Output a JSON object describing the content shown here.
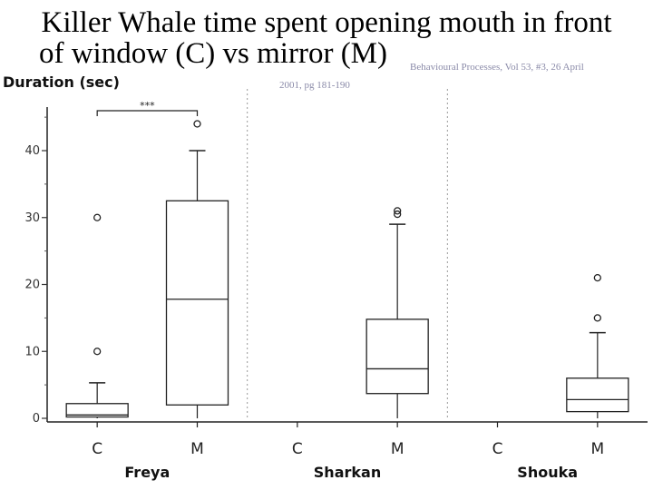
{
  "slide": {
    "title_line1": "Killer Whale time spent opening mouth in front",
    "title_line2": "of window (C) vs mirror (M)",
    "citation_line1": "Behavioural Processes, Vol 53, #3, 26 April",
    "citation_line2": "2001, pg 181-190"
  },
  "chart_data": {
    "type": "box",
    "title": "",
    "ylabel": "Duration (sec)",
    "ylim": [
      0,
      45
    ],
    "yticks": [
      0,
      10,
      20,
      30,
      40
    ],
    "significance": {
      "label": "***",
      "group": "Freya",
      "between": [
        "C",
        "M"
      ]
    },
    "groups": [
      {
        "name": "Freya",
        "boxes": [
          {
            "category": "C",
            "whisker_low": 0,
            "q1": 0.2,
            "median": 0.5,
            "q3": 2.2,
            "whisker_high": 5.3,
            "outliers": [
              10,
              30
            ]
          },
          {
            "category": "M",
            "whisker_low": 0,
            "q1": 2,
            "median": 17.8,
            "q3": 32.5,
            "whisker_high": 40,
            "outliers": [
              44
            ]
          }
        ]
      },
      {
        "name": "Sharkan",
        "boxes": [
          {
            "category": "C",
            "whisker_low": null,
            "q1": null,
            "median": null,
            "q3": null,
            "whisker_high": null,
            "outliers": []
          },
          {
            "category": "M",
            "whisker_low": 0,
            "q1": 3.7,
            "median": 7.4,
            "q3": 14.8,
            "whisker_high": 29,
            "outliers": [
              30.5,
              31
            ]
          }
        ]
      },
      {
        "name": "Shouka",
        "boxes": [
          {
            "category": "C",
            "whisker_low": null,
            "q1": null,
            "median": null,
            "q3": null,
            "whisker_high": null,
            "outliers": []
          },
          {
            "category": "M",
            "whisker_low": 0,
            "q1": 1,
            "median": 2.8,
            "q3": 6,
            "whisker_high": 12.8,
            "outliers": [
              15,
              21
            ]
          }
        ]
      }
    ]
  }
}
